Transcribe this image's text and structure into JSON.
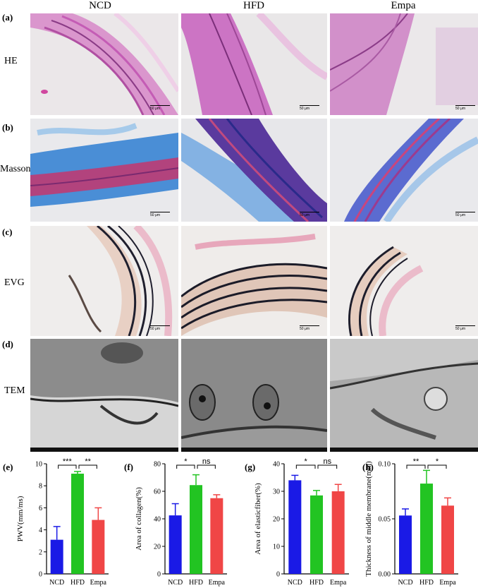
{
  "headers": {
    "col1": "NCD",
    "col2": "HFD",
    "col3": "Empa"
  },
  "panels": {
    "a": "(a)",
    "b": "(b)",
    "c": "(c)",
    "d": "(d)",
    "e": "(e)",
    "f": "(f)",
    "g": "(g)",
    "h": "(h)"
  },
  "rows": {
    "he": "HE",
    "masson": "Masson",
    "evg": "EVG",
    "tem": "TEM"
  },
  "scalebar_label": "50 μm",
  "colors": {
    "NCD": "#1a1ae6",
    "HFD": "#22c422",
    "Empa": "#f04646",
    "he_bg": "#e8e4e6",
    "masson_bg": "#e6e6e8",
    "evg_bg": "#eeeceb",
    "tem_bg": "#9a9a9a"
  },
  "chart_data": [
    {
      "type": "bar",
      "panel": "(e)",
      "categories": [
        "NCD",
        "HFD",
        "Empa"
      ],
      "values": [
        3.1,
        9.1,
        4.9
      ],
      "errors": [
        1.2,
        0.2,
        1.1
      ],
      "ylabel": "PWV(mm/ms)",
      "ylim": [
        0,
        10
      ],
      "yticks": [
        0,
        2,
        4,
        6,
        8,
        10
      ],
      "significance": [
        {
          "from": 0,
          "to": 1,
          "label": "***"
        },
        {
          "from": 1,
          "to": 2,
          "label": "**"
        }
      ]
    },
    {
      "type": "bar",
      "panel": "(f)",
      "categories": [
        "NCD",
        "HFD",
        "Empa"
      ],
      "values": [
        42.5,
        64.5,
        55
      ],
      "errors": [
        8.5,
        7.5,
        2.5
      ],
      "ylabel": "Area of collagen(%)",
      "ylim": [
        0,
        80
      ],
      "yticks": [
        0,
        20,
        40,
        60,
        80
      ],
      "significance": [
        {
          "from": 0,
          "to": 1,
          "label": "*"
        },
        {
          "from": 1,
          "to": 2,
          "label": "ns"
        }
      ]
    },
    {
      "type": "bar",
      "panel": "(g)",
      "categories": [
        "NCD",
        "HFD",
        "Empa"
      ],
      "values": [
        34,
        28.5,
        30
      ],
      "errors": [
        1.8,
        1.8,
        2.5
      ],
      "ylabel": "Area of elasticfiber(%)",
      "ylim": [
        0,
        40
      ],
      "yticks": [
        0,
        10,
        20,
        30,
        40
      ],
      "significance": [
        {
          "from": 0,
          "to": 1,
          "label": "*"
        },
        {
          "from": 1,
          "to": 2,
          "label": "ns"
        }
      ]
    },
    {
      "type": "bar",
      "panel": "(h)",
      "categories": [
        "NCD",
        "HFD",
        "Empa"
      ],
      "values": [
        0.053,
        0.082,
        0.062
      ],
      "errors": [
        0.006,
        0.012,
        0.007
      ],
      "ylabel": "Thickness of middle membrane(mm)",
      "ylim": [
        0,
        0.1
      ],
      "yticks": [
        0.0,
        0.05,
        0.1
      ],
      "ytick_labels": [
        "0.00",
        "0.05",
        "0.10"
      ],
      "significance": [
        {
          "from": 0,
          "to": 1,
          "label": "**"
        },
        {
          "from": 1,
          "to": 2,
          "label": "*"
        }
      ]
    }
  ]
}
